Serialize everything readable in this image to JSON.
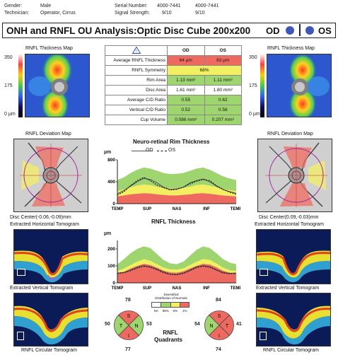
{
  "header": {
    "gender_label": "Gender:",
    "gender_value": "Male",
    "technician_label": "Technician:",
    "technician_value": "Operator, Cirrus",
    "serial_label": "Serial Number:",
    "serial_od": "4000-7441",
    "serial_os": "4000-7441",
    "signal_label": "Signal Strength:",
    "signal_od": "9/10",
    "signal_os": "9/10"
  },
  "title": "ONH and RNFL OU Analysis:Optic Disc Cube 200x200",
  "eye_labels": {
    "od": "OD",
    "os": "OS"
  },
  "left_panel": {
    "thickness_map_title": "RNFL Thickness Map",
    "scale_max": "350",
    "scale_mid": "175",
    "scale_min": "0 µm",
    "deviation_map_title": "RNFL Deviation Map",
    "disc_center": "Disc Center(-0.06,-0.09)mm",
    "horizontal_title": "Extracted Horizontal Tomogram",
    "vertical_title": "Extracted Vertical Tomogram",
    "circular_title": "RNFL Circular Tomogram"
  },
  "right_panel": {
    "thickness_map_title": "RNFL Thickness Map",
    "scale_max": "350",
    "scale_mid": "175",
    "scale_min": "0 µm",
    "deviation_map_title": "RNFL Deviation Map",
    "disc_center": "Disc Center(0.09,-0.03)mm",
    "horizontal_title": "Extracted Horizontal Tomogram",
    "vertical_title": "Extracted Vertical Tomogram",
    "circular_title": "RNFL Circular Tomogram"
  },
  "metrics_table": {
    "col_od": "OD",
    "col_os": "OS",
    "rows": [
      {
        "label": "Average RNFL Thickness",
        "od": "64 µm",
        "os": "63 µm",
        "od_status": "red",
        "os_status": "red"
      },
      {
        "label": "RNFL Symmetry",
        "combined": "68%",
        "status": "yellow"
      },
      {
        "label": "Rim Area",
        "od": "1.13 mm²",
        "os": "1.11 mm²",
        "od_status": "green",
        "os_status": "green"
      },
      {
        "label": "Disc Area",
        "od": "1.61 mm²",
        "os": "1.80 mm²",
        "od_status": "white",
        "os_status": "white"
      },
      {
        "label": "Average C/D Ratio",
        "od": "0.55",
        "os": "0.62",
        "od_status": "green",
        "os_status": "green"
      },
      {
        "label": "Vertical C/D Ratio",
        "od": "0.52",
        "os": "0.58",
        "od_status": "green",
        "os_status": "green"
      },
      {
        "label": "Cup Volume",
        "od": "0.086 mm³",
        "os": "0.207 mm³",
        "od_status": "green",
        "os_status": "green"
      }
    ]
  },
  "rim_chart": {
    "title": "Neuro-retinal Rim Thickness",
    "legend_od": "OD",
    "legend_os": "OS",
    "unit": "µm",
    "y_ticks": [
      "800",
      "400",
      "0"
    ],
    "x_ticks": [
      "TEMP",
      "SUP",
      "NAS",
      "INF",
      "TEMP"
    ]
  },
  "rnfl_chart": {
    "title": "RNFL Thickness",
    "unit": "µm",
    "y_ticks": [
      "200",
      "100",
      "0"
    ],
    "x_ticks": [
      "TEMP",
      "SUP",
      "NAS",
      "INF",
      "TEMP"
    ]
  },
  "distribution_legend": {
    "title_line1": "Diversified",
    "title_line2": "Distribution of Normals",
    "labels": [
      "NA",
      "95%",
      "5%",
      "1%"
    ],
    "colors": [
      "#ffffff",
      "#9ed56e",
      "#f2ef63",
      "#ee6a60"
    ]
  },
  "quadrants": {
    "title_line1": "RNFL",
    "title_line2": "Quadrants",
    "od": {
      "S": "78",
      "N": "53",
      "I": "77",
      "T": "50"
    },
    "os": {
      "S": "84",
      "N": "41",
      "I": "74",
      "T": "54"
    },
    "letters": {
      "s": "S",
      "n": "N",
      "i": "I",
      "t": "T"
    }
  },
  "colors": {
    "od_dot": "#3d58b8",
    "red": "#ee6a60",
    "green": "#9ed56e",
    "yellow": "#f2ef63",
    "od_line": "#555555",
    "os_line": "#111111"
  },
  "chart_data": [
    {
      "type": "line",
      "title": "Neuro-retinal Rim Thickness",
      "ylabel": "µm",
      "ylim": [
        0,
        800
      ],
      "x_ticks": [
        "TEMP",
        "SUP",
        "NAS",
        "INF",
        "TEMP"
      ],
      "x": [
        0,
        20,
        40,
        60,
        80,
        100,
        120,
        140,
        160,
        180,
        200,
        220,
        240,
        260,
        280,
        300,
        320,
        340,
        360
      ],
      "normal_bands": {
        "green_top": [
          430,
          480,
          560,
          620,
          660,
          640,
          600,
          560,
          540,
          545,
          560,
          600,
          640,
          660,
          620,
          560,
          500,
          460,
          430
        ],
        "yellow_top": [
          230,
          260,
          300,
          330,
          350,
          340,
          310,
          290,
          280,
          280,
          290,
          310,
          340,
          350,
          330,
          300,
          270,
          250,
          230
        ],
        "red_top": [
          130,
          150,
          170,
          180,
          190,
          185,
          170,
          160,
          150,
          150,
          160,
          170,
          185,
          190,
          180,
          165,
          150,
          140,
          130
        ]
      },
      "series": [
        {
          "name": "OD",
          "values": [
            180,
            240,
            320,
            400,
            460,
            440,
            380,
            300,
            260,
            270,
            300,
            380,
            420,
            450,
            400,
            320,
            260,
            220,
            190
          ]
        },
        {
          "name": "OS",
          "values": [
            160,
            220,
            330,
            420,
            480,
            420,
            340,
            290,
            250,
            260,
            300,
            360,
            410,
            440,
            420,
            330,
            260,
            210,
            170
          ]
        }
      ]
    },
    {
      "type": "line",
      "title": "RNFL Thickness",
      "ylabel": "µm",
      "ylim": [
        0,
        250
      ],
      "x_ticks": [
        "TEMP",
        "SUP",
        "NAS",
        "INF",
        "TEMP"
      ],
      "x": [
        0,
        20,
        40,
        60,
        80,
        100,
        120,
        140,
        160,
        180,
        200,
        220,
        240,
        260,
        280,
        300,
        320,
        340,
        360
      ],
      "normal_bands": {
        "green_top": [
          110,
          140,
          175,
          200,
          215,
          205,
          170,
          135,
          115,
          110,
          125,
          160,
          195,
          215,
          205,
          175,
          140,
          120,
          110
        ],
        "yellow_top": [
          70,
          85,
          105,
          125,
          140,
          130,
          110,
          90,
          80,
          78,
          85,
          105,
          125,
          140,
          135,
          115,
          90,
          75,
          70
        ],
        "red_top": [
          55,
          65,
          85,
          100,
          112,
          105,
          90,
          72,
          62,
          60,
          68,
          85,
          100,
          112,
          108,
          92,
          72,
          60,
          55
        ]
      },
      "series": [
        {
          "name": "OD",
          "values": [
            58,
            62,
            75,
            92,
            102,
            95,
            80,
            65,
            52,
            50,
            58,
            75,
            95,
            102,
            96,
            78,
            62,
            56,
            58
          ]
        },
        {
          "name": "OS",
          "values": [
            55,
            60,
            72,
            88,
            98,
            92,
            78,
            60,
            50,
            48,
            55,
            72,
            90,
            98,
            92,
            75,
            58,
            54,
            55
          ]
        }
      ]
    }
  ]
}
